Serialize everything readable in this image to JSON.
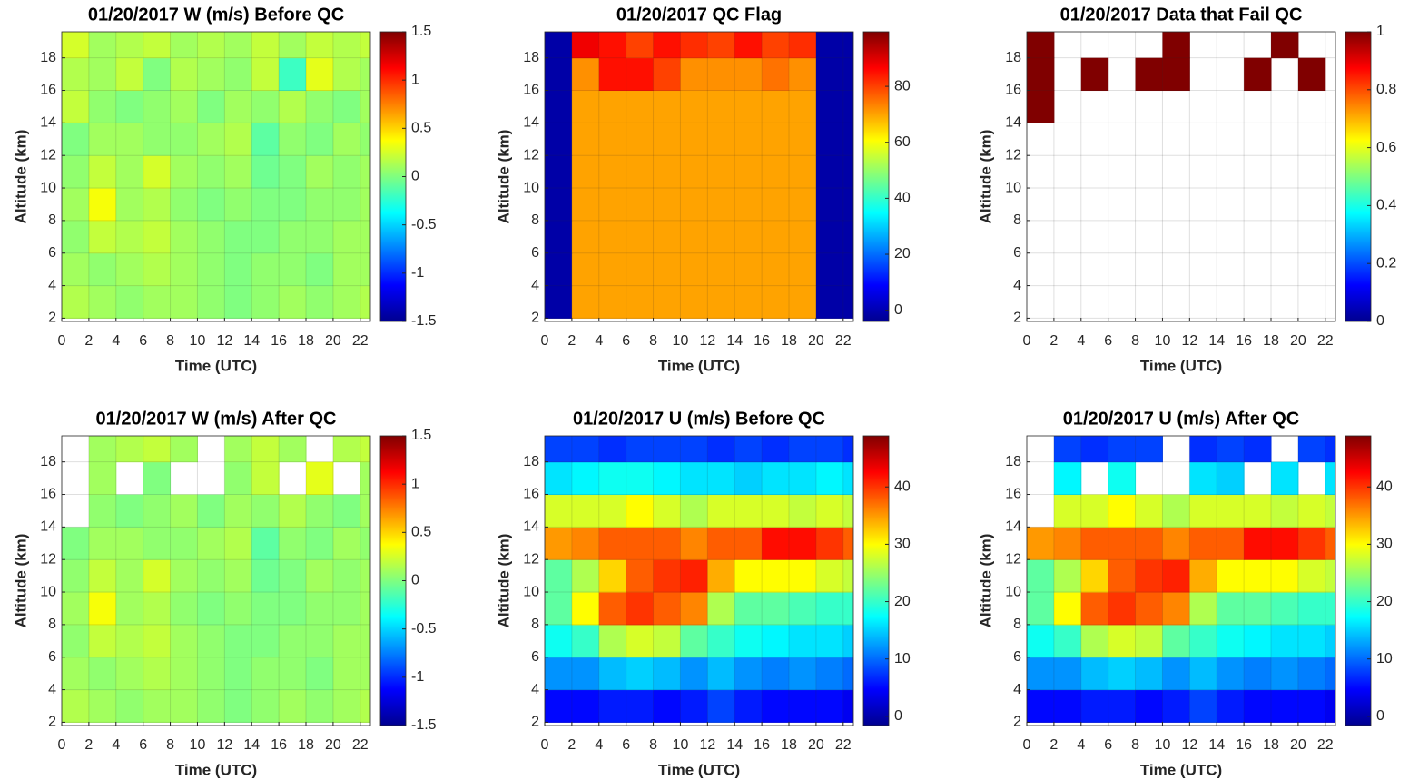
{
  "chart_data": [
    {
      "type": "heatmap",
      "title": "01/20/2017 W (m/s) Before QC",
      "xlabel": "Time (UTC)",
      "ylabel": "Altitude (km)",
      "colormap": "jet",
      "grid": true,
      "xlim": [
        0,
        22.75
      ],
      "ylim": [
        1.8,
        19.6
      ],
      "xticks": [
        0,
        2,
        4,
        6,
        8,
        10,
        12,
        14,
        16,
        18,
        20,
        22
      ],
      "yticks": [
        2,
        4,
        6,
        8,
        10,
        12,
        14,
        16,
        18
      ],
      "clim": [
        -1.5,
        1.5
      ],
      "cticks": [
        -1.5,
        -1,
        -0.5,
        0,
        0.5,
        1,
        1.5
      ],
      "x": [
        1,
        3,
        5,
        7,
        9,
        11,
        13,
        15,
        17,
        19,
        21,
        23
      ],
      "y": [
        3,
        5,
        7,
        9,
        11,
        13,
        15,
        17,
        19
      ],
      "z": [
        [
          0.15,
          0.1,
          0.05,
          0.1,
          0.1,
          0.05,
          0.0,
          0.05,
          0.1,
          0.05,
          0.1,
          0.15
        ],
        [
          0.1,
          0.05,
          0.1,
          0.15,
          0.1,
          0.05,
          0.0,
          0.05,
          0.05,
          0.0,
          0.1,
          0.1
        ],
        [
          0.05,
          0.2,
          0.15,
          0.2,
          0.1,
          0.05,
          0.0,
          0.0,
          0.05,
          0.05,
          0.1,
          0.1
        ],
        [
          0.1,
          0.35,
          0.1,
          0.15,
          0.05,
          0.0,
          0.05,
          0.0,
          0.0,
          0.05,
          0.05,
          0.1
        ],
        [
          0.05,
          0.2,
          0.1,
          0.25,
          0.1,
          0.05,
          0.1,
          -0.05,
          0.0,
          0.1,
          0.05,
          0.1
        ],
        [
          0.0,
          0.1,
          0.1,
          0.05,
          0.05,
          0.1,
          0.15,
          -0.1,
          0.05,
          0.0,
          0.1,
          0.05
        ],
        [
          0.2,
          0.05,
          0.0,
          0.05,
          0.1,
          0.0,
          0.1,
          0.05,
          0.15,
          0.05,
          0.0,
          0.1
        ],
        [
          0.15,
          0.1,
          0.2,
          0.0,
          0.15,
          0.1,
          0.05,
          0.2,
          -0.2,
          0.3,
          0.15,
          0.1
        ],
        [
          0.25,
          0.1,
          0.15,
          0.2,
          0.1,
          0.15,
          0.1,
          0.2,
          0.1,
          0.2,
          0.15,
          0.2
        ]
      ]
    },
    {
      "type": "heatmap",
      "title": "01/20/2017 QC Flag",
      "xlabel": "Time (UTC)",
      "ylabel": "Altitude (km)",
      "colormap": "jet",
      "grid": true,
      "xlim": [
        0,
        22.75
      ],
      "ylim": [
        1.8,
        19.6
      ],
      "xticks": [
        0,
        2,
        4,
        6,
        8,
        10,
        12,
        14,
        16,
        18,
        20,
        22
      ],
      "yticks": [
        2,
        4,
        6,
        8,
        10,
        12,
        14,
        16,
        18
      ],
      "clim": [
        -4,
        99.5
      ],
      "cticks": [
        0,
        20,
        40,
        60,
        80
      ],
      "x": [
        1,
        3,
        5,
        7,
        9,
        11,
        13,
        15,
        17,
        19,
        21,
        23
      ],
      "y": [
        3,
        5,
        7,
        9,
        11,
        13,
        15,
        17,
        19
      ],
      "z": [
        [
          0,
          70,
          70,
          70,
          70,
          70,
          70,
          70,
          70,
          70,
          0,
          0
        ],
        [
          0,
          70,
          70,
          70,
          70,
          70,
          70,
          70,
          70,
          70,
          0,
          0
        ],
        [
          0,
          70,
          70,
          70,
          70,
          70,
          70,
          70,
          70,
          70,
          0,
          0
        ],
        [
          0,
          70,
          70,
          70,
          70,
          70,
          70,
          70,
          70,
          70,
          0,
          0
        ],
        [
          0,
          70,
          70,
          70,
          70,
          70,
          70,
          70,
          70,
          70,
          0,
          0
        ],
        [
          0,
          70,
          70,
          70,
          70,
          70,
          70,
          70,
          70,
          70,
          0,
          0
        ],
        [
          0,
          70,
          70,
          70,
          70,
          70,
          70,
          70,
          70,
          70,
          0,
          0
        ],
        [
          0,
          72,
          85,
          85,
          80,
          72,
          72,
          72,
          75,
          72,
          0,
          0
        ],
        [
          0,
          88,
          85,
          80,
          85,
          82,
          80,
          85,
          80,
          82,
          0,
          0
        ]
      ]
    },
    {
      "type": "heatmap",
      "title": "01/20/2017 Data that Fail QC",
      "xlabel": "Time (UTC)",
      "ylabel": "Altitude (km)",
      "colormap": "jet",
      "grid": true,
      "xlim": [
        0,
        22.75
      ],
      "ylim": [
        1.8,
        19.6
      ],
      "xticks": [
        0,
        2,
        4,
        6,
        8,
        10,
        12,
        14,
        16,
        18,
        20,
        22
      ],
      "yticks": [
        2,
        4,
        6,
        8,
        10,
        12,
        14,
        16,
        18
      ],
      "clim": [
        0,
        1
      ],
      "cticks": [
        0,
        0.2,
        0.4,
        0.6,
        0.8,
        1
      ],
      "x": [
        1,
        3,
        5,
        7,
        9,
        11,
        13,
        15,
        17,
        19,
        21,
        23
      ],
      "y": [
        3,
        5,
        7,
        9,
        11,
        13,
        15,
        17,
        19
      ],
      "z": [
        [
          null,
          null,
          null,
          null,
          null,
          null,
          null,
          null,
          null,
          null,
          null,
          null
        ],
        [
          null,
          null,
          null,
          null,
          null,
          null,
          null,
          null,
          null,
          null,
          null,
          null
        ],
        [
          null,
          null,
          null,
          null,
          null,
          null,
          null,
          null,
          null,
          null,
          null,
          null
        ],
        [
          null,
          null,
          null,
          null,
          null,
          null,
          null,
          null,
          null,
          null,
          null,
          null
        ],
        [
          null,
          null,
          null,
          null,
          null,
          null,
          null,
          null,
          null,
          null,
          null,
          null
        ],
        [
          null,
          null,
          null,
          null,
          null,
          null,
          null,
          null,
          null,
          null,
          null,
          null
        ],
        [
          1,
          null,
          null,
          null,
          null,
          null,
          null,
          null,
          null,
          null,
          null,
          null
        ],
        [
          1,
          null,
          1,
          null,
          1,
          1,
          null,
          null,
          1,
          null,
          1,
          null
        ],
        [
          1,
          null,
          null,
          null,
          null,
          1,
          null,
          null,
          null,
          1,
          null,
          null
        ]
      ]
    },
    {
      "type": "heatmap",
      "title": "01/20/2017 W (m/s) After QC",
      "xlabel": "Time (UTC)",
      "ylabel": "Altitude (km)",
      "colormap": "jet",
      "grid": true,
      "xlim": [
        0,
        22.75
      ],
      "ylim": [
        1.8,
        19.6
      ],
      "xticks": [
        0,
        2,
        4,
        6,
        8,
        10,
        12,
        14,
        16,
        18,
        20,
        22
      ],
      "yticks": [
        2,
        4,
        6,
        8,
        10,
        12,
        14,
        16,
        18
      ],
      "clim": [
        -1.5,
        1.5
      ],
      "cticks": [
        -1.5,
        -1,
        -0.5,
        0,
        0.5,
        1,
        1.5
      ],
      "x": [
        1,
        3,
        5,
        7,
        9,
        11,
        13,
        15,
        17,
        19,
        21,
        23
      ],
      "y": [
        3,
        5,
        7,
        9,
        11,
        13,
        15,
        17,
        19
      ],
      "z": [
        [
          0.15,
          0.1,
          0.05,
          0.1,
          0.1,
          0.05,
          0.0,
          0.05,
          0.1,
          0.05,
          0.1,
          0.15
        ],
        [
          0.1,
          0.05,
          0.1,
          0.15,
          0.1,
          0.05,
          0.0,
          0.05,
          0.05,
          0.0,
          0.1,
          0.1
        ],
        [
          0.05,
          0.2,
          0.15,
          0.2,
          0.1,
          0.05,
          0.0,
          0.0,
          0.05,
          0.05,
          0.1,
          0.1
        ],
        [
          0.1,
          0.35,
          0.1,
          0.15,
          0.05,
          0.0,
          0.05,
          0.0,
          0.0,
          0.05,
          0.05,
          0.1
        ],
        [
          0.05,
          0.2,
          0.1,
          0.25,
          0.1,
          0.05,
          0.1,
          -0.05,
          0.0,
          0.1,
          0.05,
          0.1
        ],
        [
          0.0,
          0.1,
          0.1,
          0.05,
          0.05,
          0.1,
          0.15,
          -0.1,
          0.05,
          0.0,
          0.1,
          0.05
        ],
        [
          null,
          0.05,
          0.0,
          0.05,
          0.1,
          0.0,
          0.1,
          0.05,
          0.15,
          0.05,
          0.0,
          0.1
        ],
        [
          null,
          0.1,
          null,
          0.0,
          null,
          null,
          0.05,
          0.2,
          null,
          0.3,
          null,
          0.1
        ],
        [
          null,
          0.1,
          0.15,
          0.2,
          0.1,
          null,
          0.1,
          0.2,
          0.1,
          null,
          0.15,
          0.2
        ]
      ]
    },
    {
      "type": "heatmap",
      "title": "01/20/2017 U (m/s) Before QC",
      "xlabel": "Time (UTC)",
      "ylabel": "Altitude (km)",
      "colormap": "jet",
      "grid": true,
      "xlim": [
        0,
        22.75
      ],
      "ylim": [
        1.8,
        19.6
      ],
      "xticks": [
        0,
        2,
        4,
        6,
        8,
        10,
        12,
        14,
        16,
        18,
        20,
        22
      ],
      "yticks": [
        2,
        4,
        6,
        8,
        10,
        12,
        14,
        16,
        18
      ],
      "clim": [
        -1.6,
        48.9
      ],
      "cticks": [
        0,
        10,
        20,
        30,
        40
      ],
      "x": [
        1,
        3,
        5,
        7,
        9,
        11,
        13,
        15,
        17,
        19,
        21,
        23
      ],
      "y": [
        3,
        5,
        7,
        9,
        11,
        13,
        15,
        17,
        19
      ],
      "z": [
        [
          5,
          5,
          6,
          6,
          5,
          6,
          8,
          6,
          5,
          5,
          5,
          4
        ],
        [
          12,
          12,
          14,
          15,
          14,
          12,
          14,
          12,
          11,
          12,
          11,
          10
        ],
        [
          18,
          20,
          26,
          28,
          27,
          22,
          20,
          18,
          17,
          16,
          16,
          15
        ],
        [
          22,
          30,
          38,
          40,
          38,
          36,
          26,
          22,
          22,
          21,
          20,
          20
        ],
        [
          22,
          26,
          32,
          38,
          40,
          41,
          34,
          30,
          30,
          30,
          28,
          27
        ],
        [
          35,
          36,
          38,
          38,
          38,
          36,
          38,
          38,
          42,
          42,
          40,
          38
        ],
        [
          28,
          28,
          28,
          30,
          28,
          26,
          28,
          28,
          28,
          27,
          28,
          27
        ],
        [
          16,
          17,
          18,
          18,
          17,
          16,
          16,
          15,
          16,
          16,
          17,
          16
        ],
        [
          8,
          8,
          7,
          8,
          8,
          8,
          7,
          8,
          7,
          8,
          8,
          7
        ]
      ]
    },
    {
      "type": "heatmap",
      "title": "01/20/2017 U (m/s) After QC",
      "xlabel": "Time (UTC)",
      "ylabel": "Altitude (km)",
      "colormap": "jet",
      "grid": true,
      "xlim": [
        0,
        22.75
      ],
      "ylim": [
        1.8,
        19.6
      ],
      "xticks": [
        0,
        2,
        4,
        6,
        8,
        10,
        12,
        14,
        16,
        18,
        20,
        22
      ],
      "yticks": [
        2,
        4,
        6,
        8,
        10,
        12,
        14,
        16,
        18
      ],
      "clim": [
        -1.6,
        48.9
      ],
      "cticks": [
        0,
        10,
        20,
        30,
        40
      ],
      "x": [
        1,
        3,
        5,
        7,
        9,
        11,
        13,
        15,
        17,
        19,
        21,
        23
      ],
      "y": [
        3,
        5,
        7,
        9,
        11,
        13,
        15,
        17,
        19
      ],
      "z": [
        [
          5,
          5,
          6,
          6,
          5,
          6,
          8,
          6,
          5,
          5,
          5,
          4
        ],
        [
          12,
          12,
          14,
          15,
          14,
          12,
          14,
          12,
          11,
          12,
          11,
          10
        ],
        [
          18,
          20,
          26,
          28,
          27,
          22,
          20,
          18,
          17,
          16,
          16,
          15
        ],
        [
          22,
          30,
          38,
          40,
          38,
          36,
          26,
          22,
          22,
          21,
          20,
          20
        ],
        [
          22,
          26,
          32,
          38,
          40,
          41,
          34,
          30,
          30,
          30,
          28,
          27
        ],
        [
          35,
          36,
          38,
          38,
          38,
          36,
          38,
          38,
          42,
          42,
          40,
          38
        ],
        [
          null,
          28,
          28,
          30,
          28,
          26,
          28,
          28,
          28,
          27,
          28,
          27
        ],
        [
          null,
          17,
          null,
          18,
          null,
          null,
          16,
          15,
          null,
          16,
          null,
          16
        ],
        [
          null,
          8,
          7,
          8,
          8,
          null,
          7,
          8,
          7,
          null,
          8,
          7
        ]
      ]
    }
  ]
}
